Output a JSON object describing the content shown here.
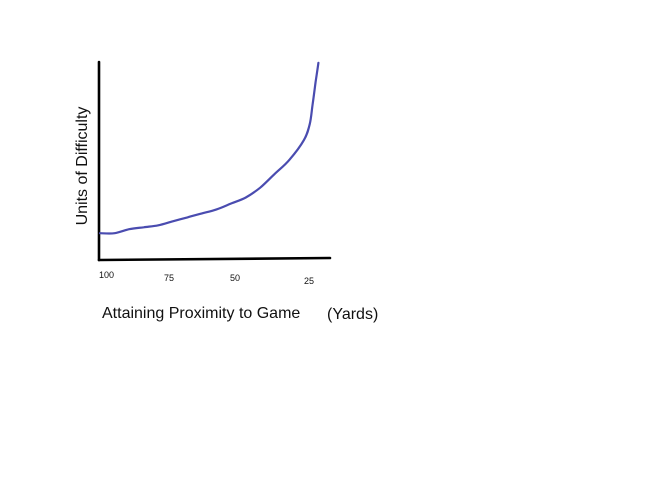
{
  "chart_data": {
    "type": "line",
    "xlabel": "Attaining Proximity to Game",
    "xlabel_unit": "(Yards)",
    "ylabel": "Units of Difficulty",
    "x_ticks": [
      "100",
      "75",
      "50",
      "25"
    ],
    "xlim": [
      100,
      20
    ],
    "ylim": [
      0,
      100
    ],
    "grid": false,
    "legend": "none",
    "series": [
      {
        "color": "#4a4cb0",
        "points": [
          {
            "x": 100,
            "y": 10
          },
          {
            "x": 95,
            "y": 10
          },
          {
            "x": 90,
            "y": 12
          },
          {
            "x": 85,
            "y": 13
          },
          {
            "x": 80,
            "y": 14
          },
          {
            "x": 75,
            "y": 16
          },
          {
            "x": 70,
            "y": 18
          },
          {
            "x": 65,
            "y": 20
          },
          {
            "x": 60,
            "y": 22
          },
          {
            "x": 55,
            "y": 25
          },
          {
            "x": 50,
            "y": 28
          },
          {
            "x": 45,
            "y": 33
          },
          {
            "x": 40,
            "y": 40
          },
          {
            "x": 35,
            "y": 47
          },
          {
            "x": 30,
            "y": 57
          },
          {
            "x": 28,
            "y": 65
          },
          {
            "x": 27,
            "y": 75
          },
          {
            "x": 26,
            "y": 86
          },
          {
            "x": 25,
            "y": 96
          }
        ]
      }
    ]
  }
}
